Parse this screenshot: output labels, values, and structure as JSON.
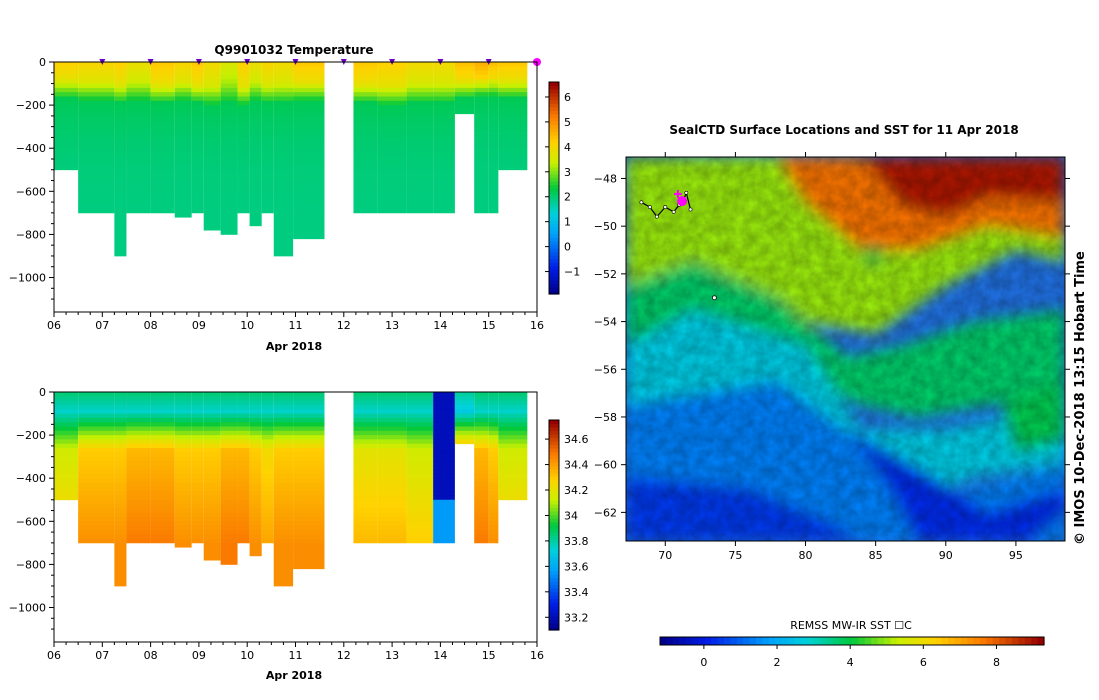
{
  "chart_data": [
    {
      "type": "heatmap",
      "title": "Q9901032  Temperature",
      "xlabel": "Apr 2018",
      "ylabel": "",
      "x_ticks": [
        "06",
        "07",
        "08",
        "09",
        "10",
        "11",
        "12",
        "13",
        "14",
        "15",
        "16"
      ],
      "y_ticks": [
        0,
        -200,
        -400,
        -600,
        -800,
        -1000
      ],
      "xlim": [
        6,
        16
      ],
      "ylim": [
        -1160,
        0
      ],
      "colorbar": {
        "ticks": [
          -1,
          0,
          1,
          2,
          3,
          4,
          5,
          6
        ],
        "range": [
          -1.9,
          6.6
        ]
      },
      "profile_days": [
        6.0,
        6.5,
        7.25,
        7.5,
        8.0,
        8.5,
        8.85,
        9.1,
        9.45,
        9.8,
        10.05,
        10.3,
        10.55,
        10.95,
        12.2,
        12.7,
        13.3,
        13.85,
        14.3,
        14.7,
        15.0,
        15.2
      ],
      "profile_depths": [
        500,
        700,
        890,
        700,
        700,
        710,
        700,
        770,
        800,
        700,
        760,
        700,
        890,
        820,
        700,
        700,
        700,
        700,
        980,
        700,
        700,
        500
      ],
      "profile_gaps": [
        null,
        null,
        null,
        null,
        null,
        null,
        null,
        null,
        null,
        null,
        null,
        null,
        null,
        null,
        null,
        null,
        null,
        null,
        [
          240,
          980
        ],
        null,
        null,
        null
      ],
      "profile_mld": [
        130,
        140,
        150,
        140,
        150,
        140,
        150,
        160,
        150,
        160,
        140,
        150,
        150,
        140,
        150,
        160,
        150,
        150,
        130,
        120,
        120,
        130
      ],
      "profile_surface_temp": [
        4.2,
        4.1,
        4.2,
        3.9,
        4.3,
        4.1,
        4.3,
        4.0,
        3.6,
        4.2,
        3.9,
        4.1,
        4.0,
        4.3,
        4.3,
        4.2,
        4.0,
        4.0,
        4.4,
        4.6,
        4.4,
        4.3
      ],
      "profile_deep_temp": 1.9,
      "series": [
        {
          "values": [
            7,
            8,
            9,
            10,
            11,
            12,
            13,
            14,
            15,
            16
          ]
        }
      ]
    },
    {
      "type": "heatmap",
      "title": "",
      "xlabel": "Apr 2018",
      "ylabel": "",
      "x_ticks": [
        "06",
        "07",
        "08",
        "09",
        "10",
        "11",
        "12",
        "13",
        "14",
        "15",
        "16"
      ],
      "y_ticks": [
        0,
        -200,
        -400,
        -600,
        -800,
        -1000
      ],
      "xlim": [
        6,
        16
      ],
      "ylim": [
        -1160,
        0
      ],
      "colorbar": {
        "ticks": [
          33.2,
          33.4,
          33.6,
          33.8,
          34,
          34.2,
          34.4,
          34.6
        ],
        "labels": [
          "33.2",
          "33.4",
          "33.6",
          "33.8",
          "34",
          "34.2",
          "34.4",
          "34.6"
        ],
        "range": [
          33.1,
          34.75
        ]
      },
      "profile_days": [
        6.0,
        6.5,
        7.25,
        7.5,
        8.0,
        8.5,
        8.85,
        9.1,
        9.45,
        9.8,
        10.05,
        10.3,
        10.55,
        10.95,
        12.2,
        12.7,
        13.3,
        13.85,
        14.3,
        14.7,
        15.0,
        15.2
      ],
      "profile_depths": [
        500,
        700,
        890,
        700,
        700,
        710,
        700,
        770,
        800,
        700,
        760,
        700,
        890,
        820,
        700,
        700,
        700,
        700,
        980,
        700,
        700,
        500
      ],
      "profile_gaps": [
        null,
        null,
        null,
        null,
        null,
        null,
        null,
        null,
        null,
        null,
        null,
        null,
        null,
        null,
        null,
        null,
        null,
        null,
        [
          240,
          980
        ],
        null,
        null,
        null
      ],
      "profile_surface_sal": [
        33.85,
        33.85,
        33.85,
        33.85,
        33.85,
        33.85,
        33.85,
        33.85,
        33.85,
        33.85,
        33.85,
        33.85,
        33.85,
        33.85,
        33.85,
        33.85,
        33.85,
        33.8,
        33.8,
        33.85,
        33.85,
        33.85
      ],
      "profile_deep_sal": [
        34.3,
        34.45,
        34.45,
        34.5,
        34.5,
        34.45,
        34.45,
        34.45,
        34.5,
        34.5,
        34.45,
        34.4,
        34.45,
        34.45,
        34.35,
        34.35,
        34.3,
        33.3,
        34.55,
        34.5,
        34.45,
        34.3
      ],
      "profile_mixed_sal": [
        33.62,
        33.62,
        33.62,
        33.62,
        33.62,
        33.62,
        33.62,
        33.62,
        33.62,
        33.62,
        33.62,
        33.62,
        33.62,
        33.62,
        33.62,
        33.62,
        33.62,
        33.3,
        33.62,
        33.62,
        33.62,
        33.62
      ]
    },
    {
      "type": "heatmap",
      "title": "SealCTD Surface Locations and SST for 11 Apr 2018",
      "xlabel": "",
      "ylabel": "",
      "x_ticks": [
        70,
        75,
        80,
        85,
        90,
        95
      ],
      "y_ticks": [
        -48,
        -50,
        -52,
        -54,
        -56,
        -58,
        -60,
        -62
      ],
      "xlim": [
        67.2,
        98.5
      ],
      "ylim": [
        -63.2,
        -47.1
      ],
      "colorbar": {
        "title": "REMSS MW-IR SST ☐C",
        "ticks": [
          0,
          2,
          4,
          6,
          8
        ],
        "range": [
          -1.2,
          9.3
        ]
      },
      "track_points": [
        [
          68.3,
          -49.0
        ],
        [
          68.9,
          -49.2
        ],
        [
          69.4,
          -49.6
        ],
        [
          70.0,
          -49.2
        ],
        [
          70.6,
          -49.4
        ],
        [
          71.0,
          -49.1
        ],
        [
          71.3,
          -48.9
        ],
        [
          71.5,
          -48.6
        ],
        [
          71.8,
          -49.3
        ]
      ],
      "current_position": [
        71.2,
        -48.95
      ],
      "start_marker": [
        70.9,
        -48.65
      ],
      "other_marker": [
        73.5,
        -53.0
      ]
    }
  ],
  "copyright": "© IMOS 10-Dec-2018 13:15 Hobart Time",
  "colors": {
    "magenta": "#ff00ff",
    "purple": "#6a00c8"
  }
}
